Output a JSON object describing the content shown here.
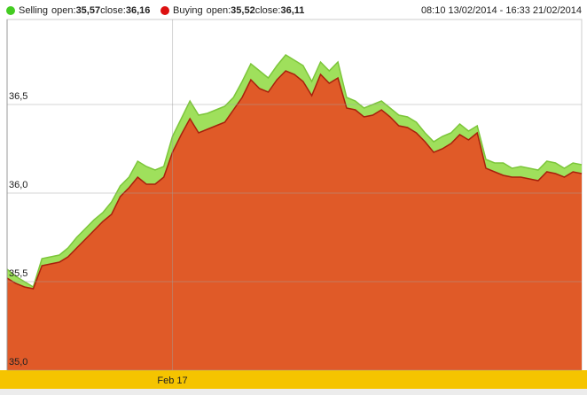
{
  "chart_data": {
    "type": "area",
    "date_range": "08:10 13/02/2014 - 16:33 21/02/2014",
    "open_text": "open:",
    "close_text": "close:",
    "categories": [
      null,
      null,
      null,
      null,
      null,
      null,
      null,
      null,
      null,
      null,
      null,
      null,
      null,
      null,
      null,
      null,
      null,
      null,
      null,
      "Feb 17",
      null,
      null,
      null,
      null,
      null,
      null,
      null,
      null,
      null,
      null,
      null,
      null,
      null,
      null,
      null,
      null,
      null,
      null,
      null,
      null,
      null,
      null,
      null,
      null,
      null,
      null,
      null,
      null,
      null,
      null,
      null,
      null,
      null,
      null,
      null,
      null,
      null,
      null,
      null,
      null,
      null,
      null,
      null,
      null,
      null,
      null,
      null
    ],
    "series": [
      {
        "name": "Selling",
        "color": "#9fe05c",
        "line_color": "#7cc63a",
        "open": 35.57,
        "open_label": "35,57",
        "close": 36.16,
        "close_label": "36,16",
        "legend_color": "#44cc22",
        "values": [
          35.57,
          35.53,
          35.5,
          35.47,
          35.63,
          35.64,
          35.65,
          35.69,
          35.75,
          35.8,
          35.85,
          35.89,
          35.95,
          36.04,
          36.09,
          36.18,
          36.15,
          36.13,
          36.15,
          36.32,
          36.42,
          36.52,
          36.44,
          36.45,
          36.47,
          36.49,
          36.54,
          36.63,
          36.73,
          36.69,
          36.65,
          36.72,
          36.78,
          36.75,
          36.72,
          36.63,
          36.74,
          36.69,
          36.74,
          36.54,
          36.52,
          36.48,
          36.5,
          36.52,
          36.48,
          36.44,
          36.43,
          36.4,
          36.34,
          36.29,
          36.32,
          36.34,
          36.39,
          36.35,
          36.38,
          36.19,
          36.17,
          36.17,
          36.14,
          36.15,
          36.14,
          36.13,
          36.18,
          36.17,
          36.14,
          36.17,
          36.16
        ]
      },
      {
        "name": "Buying",
        "color": "#e05a28",
        "line_color": "#a8200c",
        "open": 35.52,
        "open_label": "35,52",
        "close": 36.11,
        "close_label": "36,11",
        "legend_color": "#dd1111",
        "values": [
          35.52,
          35.49,
          35.47,
          35.46,
          35.59,
          35.6,
          35.61,
          35.64,
          35.69,
          35.74,
          35.79,
          35.84,
          35.88,
          35.98,
          36.03,
          36.09,
          36.05,
          36.05,
          36.09,
          36.23,
          36.33,
          36.42,
          36.34,
          36.36,
          36.38,
          36.4,
          36.47,
          36.54,
          36.64,
          36.59,
          36.57,
          36.64,
          36.69,
          36.67,
          36.63,
          36.55,
          36.67,
          36.62,
          36.65,
          36.48,
          36.47,
          36.43,
          36.44,
          36.47,
          36.43,
          36.38,
          36.37,
          36.34,
          36.29,
          36.23,
          36.25,
          36.28,
          36.33,
          36.3,
          36.34,
          36.14,
          36.12,
          36.1,
          36.09,
          36.09,
          36.08,
          36.07,
          36.12,
          36.11,
          36.09,
          36.12,
          36.11
        ]
      }
    ],
    "ylim": [
      35,
      36.98
    ],
    "yticks": [
      {
        "value": 35,
        "label": "35,0"
      },
      {
        "value": 35.5,
        "label": "35,5"
      },
      {
        "value": 36,
        "label": "36,0"
      },
      {
        "value": 36.5,
        "label": "36,5"
      }
    ],
    "grid": true
  }
}
